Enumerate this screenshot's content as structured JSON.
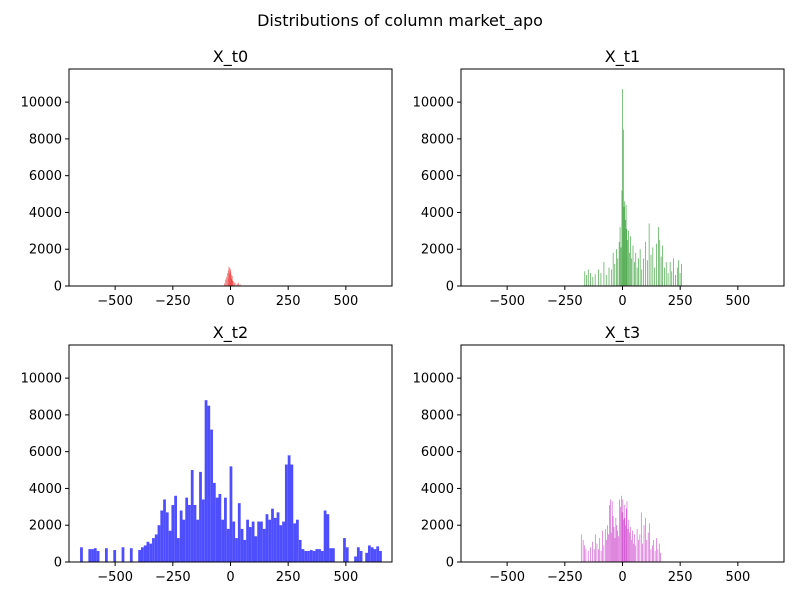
{
  "figure": {
    "title": "Distributions of column market_apo"
  },
  "chart_data": [
    {
      "type": "bar",
      "title": "X_t0",
      "xlabel": "",
      "ylabel": "",
      "xlim": [
        -700,
        700
      ],
      "ylim": [
        0,
        11800
      ],
      "xticks": [
        -500,
        -250,
        0,
        250,
        500
      ],
      "yticks": [
        0,
        2000,
        4000,
        6000,
        8000,
        10000
      ],
      "grid": false,
      "color": "#ee4444",
      "bin_width": 2,
      "bins": [
        [
          -28,
          150
        ],
        [
          -22,
          350
        ],
        [
          -18,
          500
        ],
        [
          -14,
          700
        ],
        [
          -12,
          400
        ],
        [
          -10,
          850
        ],
        [
          -8,
          1050
        ],
        [
          -6,
          650
        ],
        [
          -4,
          980
        ],
        [
          -2,
          750
        ],
        [
          0,
          900
        ],
        [
          2,
          600
        ],
        [
          4,
          400
        ],
        [
          6,
          550
        ],
        [
          8,
          300
        ],
        [
          12,
          250
        ],
        [
          16,
          180
        ],
        [
          22,
          150
        ],
        [
          28,
          120
        ],
        [
          34,
          180
        ],
        [
          40,
          100
        ]
      ]
    },
    {
      "type": "bar",
      "title": "X_t1",
      "xlabel": "",
      "ylabel": "",
      "xlim": [
        -700,
        700
      ],
      "ylim": [
        0,
        11800
      ],
      "xticks": [
        -500,
        -250,
        0,
        250,
        500
      ],
      "yticks": [
        0,
        2000,
        4000,
        6000,
        8000,
        10000
      ],
      "grid": false,
      "color": "#3fa23f",
      "bin_width": 3,
      "bins": [
        [
          -165,
          800
        ],
        [
          -158,
          600
        ],
        [
          -150,
          900
        ],
        [
          -140,
          700
        ],
        [
          -130,
          500
        ],
        [
          -120,
          650
        ],
        [
          -105,
          900
        ],
        [
          -95,
          700
        ],
        [
          -82,
          1300
        ],
        [
          -72,
          600
        ],
        [
          -60,
          1000
        ],
        [
          -50,
          900
        ],
        [
          -42,
          1800
        ],
        [
          -35,
          1200
        ],
        [
          -28,
          2000
        ],
        [
          -22,
          1500
        ],
        [
          -16,
          2400
        ],
        [
          -12,
          3200
        ],
        [
          -8,
          2100
        ],
        [
          -4,
          5200
        ],
        [
          -1,
          10700
        ],
        [
          2,
          8500
        ],
        [
          5,
          4300
        ],
        [
          8,
          4600
        ],
        [
          11,
          3600
        ],
        [
          14,
          4400
        ],
        [
          17,
          3100
        ],
        [
          20,
          2500
        ],
        [
          24,
          3000
        ],
        [
          28,
          1800
        ],
        [
          33,
          2700
        ],
        [
          38,
          1500
        ],
        [
          44,
          2200
        ],
        [
          50,
          1300
        ],
        [
          56,
          1800
        ],
        [
          62,
          1000
        ],
        [
          68,
          1500
        ],
        [
          75,
          2000
        ],
        [
          82,
          900
        ],
        [
          90,
          1500
        ],
        [
          98,
          2400
        ],
        [
          106,
          1400
        ],
        [
          114,
          3400
        ],
        [
          122,
          1700
        ],
        [
          130,
          2100
        ],
        [
          138,
          1000
        ],
        [
          146,
          2300
        ],
        [
          154,
          3200
        ],
        [
          160,
          2500
        ],
        [
          166,
          1600
        ],
        [
          172,
          2200
        ],
        [
          180,
          1000
        ],
        [
          188,
          1300
        ],
        [
          196,
          700
        ],
        [
          205,
          1300
        ],
        [
          212,
          800
        ],
        [
          220,
          1500
        ],
        [
          228,
          600
        ],
        [
          236,
          1000
        ],
        [
          242,
          1400
        ],
        [
          248,
          700
        ],
        [
          254,
          1200
        ]
      ]
    },
    {
      "type": "bar",
      "title": "X_t2",
      "xlabel": "",
      "ylabel": "",
      "xlim": [
        -700,
        700
      ],
      "ylim": [
        0,
        11800
      ],
      "xticks": [
        -500,
        -250,
        0,
        250,
        500
      ],
      "yticks": [
        0,
        2000,
        4000,
        6000,
        8000,
        10000
      ],
      "grid": false,
      "color": "#4444ff",
      "bin_width": 12,
      "bins": [
        [
          -652,
          800
        ],
        [
          -616,
          700
        ],
        [
          -604,
          700
        ],
        [
          -592,
          750
        ],
        [
          -580,
          600
        ],
        [
          -544,
          750
        ],
        [
          -508,
          650
        ],
        [
          -472,
          800
        ],
        [
          -436,
          750
        ],
        [
          -400,
          650
        ],
        [
          -388,
          800
        ],
        [
          -376,
          900
        ],
        [
          -364,
          1100
        ],
        [
          -352,
          1000
        ],
        [
          -340,
          1300
        ],
        [
          -328,
          1500
        ],
        [
          -316,
          2000
        ],
        [
          -304,
          2800
        ],
        [
          -292,
          3400
        ],
        [
          -280,
          2700
        ],
        [
          -268,
          1700
        ],
        [
          -256,
          3100
        ],
        [
          -244,
          3600
        ],
        [
          -232,
          1300
        ],
        [
          -220,
          2800
        ],
        [
          -208,
          2300
        ],
        [
          -196,
          3500
        ],
        [
          -184,
          3100
        ],
        [
          -172,
          5000
        ],
        [
          -160,
          3100
        ],
        [
          -148,
          2300
        ],
        [
          -136,
          4900
        ],
        [
          -124,
          3400
        ],
        [
          -112,
          8800
        ],
        [
          -100,
          8500
        ],
        [
          -88,
          7200
        ],
        [
          -76,
          4300
        ],
        [
          -64,
          3500
        ],
        [
          -52,
          3700
        ],
        [
          -40,
          2300
        ],
        [
          -28,
          3500
        ],
        [
          -16,
          1800
        ],
        [
          -4,
          5200
        ],
        [
          8,
          2200
        ],
        [
          20,
          1300
        ],
        [
          32,
          3200
        ],
        [
          44,
          1800
        ],
        [
          56,
          1200
        ],
        [
          68,
          2300
        ],
        [
          80,
          1900
        ],
        [
          92,
          2200
        ],
        [
          104,
          1400
        ],
        [
          116,
          2200
        ],
        [
          128,
          2200
        ],
        [
          140,
          1800
        ],
        [
          152,
          2600
        ],
        [
          164,
          2300
        ],
        [
          176,
          2900
        ],
        [
          188,
          2400
        ],
        [
          200,
          2700
        ],
        [
          212,
          2000
        ],
        [
          224,
          2200
        ],
        [
          236,
          5300
        ],
        [
          248,
          5800
        ],
        [
          260,
          5300
        ],
        [
          272,
          2100
        ],
        [
          284,
          2300
        ],
        [
          296,
          1200
        ],
        [
          308,
          700
        ],
        [
          320,
          600
        ],
        [
          332,
          600
        ],
        [
          344,
          650
        ],
        [
          356,
          600
        ],
        [
          368,
          700
        ],
        [
          380,
          700
        ],
        [
          392,
          600
        ],
        [
          404,
          2800
        ],
        [
          416,
          2600
        ],
        [
          428,
          750
        ],
        [
          440,
          750
        ],
        [
          488,
          1300
        ],
        [
          500,
          800
        ],
        [
          536,
          300
        ],
        [
          548,
          800
        ],
        [
          560,
          600
        ],
        [
          584,
          500
        ],
        [
          596,
          900
        ],
        [
          608,
          800
        ],
        [
          620,
          700
        ],
        [
          632,
          850
        ],
        [
          644,
          600
        ]
      ]
    },
    {
      "type": "bar",
      "title": "X_t3",
      "xlabel": "",
      "ylabel": "",
      "xlim": [
        -700,
        700
      ],
      "ylim": [
        0,
        11800
      ],
      "xticks": [
        -500,
        -250,
        0,
        250,
        500
      ],
      "yticks": [
        0,
        2000,
        4000,
        6000,
        8000,
        10000
      ],
      "grid": false,
      "color": "#cc44cc",
      "bin_width": 2.5,
      "bins": [
        [
          -180,
          1500
        ],
        [
          -172,
          1200
        ],
        [
          -166,
          900
        ],
        [
          -160,
          700
        ],
        [
          -150,
          600
        ],
        [
          -140,
          800
        ],
        [
          -132,
          1100
        ],
        [
          -124,
          700
        ],
        [
          -118,
          1500
        ],
        [
          -112,
          1000
        ],
        [
          -106,
          700
        ],
        [
          -100,
          1300
        ],
        [
          -94,
          600
        ],
        [
          -88,
          1700
        ],
        [
          -82,
          900
        ],
        [
          -76,
          1800
        ],
        [
          -70,
          1200
        ],
        [
          -66,
          2000
        ],
        [
          -62,
          1500
        ],
        [
          -58,
          3100
        ],
        [
          -54,
          3400
        ],
        [
          -50,
          1600
        ],
        [
          -46,
          3300
        ],
        [
          -42,
          2500
        ],
        [
          -38,
          1900
        ],
        [
          -34,
          1300
        ],
        [
          -30,
          2400
        ],
        [
          -26,
          2000
        ],
        [
          -22,
          1700
        ],
        [
          -18,
          1400
        ],
        [
          -14,
          3400
        ],
        [
          -10,
          3000
        ],
        [
          -6,
          3600
        ],
        [
          -3,
          2700
        ],
        [
          0,
          3400
        ],
        [
          3,
          2300
        ],
        [
          6,
          3100
        ],
        [
          9,
          2400
        ],
        [
          12,
          2000
        ],
        [
          15,
          2900
        ],
        [
          18,
          3300
        ],
        [
          22,
          1800
        ],
        [
          26,
          2300
        ],
        [
          30,
          1600
        ],
        [
          34,
          1900
        ],
        [
          38,
          1200
        ],
        [
          42,
          1700
        ],
        [
          46,
          1000
        ],
        [
          50,
          1500
        ],
        [
          56,
          900
        ],
        [
          62,
          1800
        ],
        [
          68,
          1200
        ],
        [
          74,
          1500
        ],
        [
          80,
          2700
        ],
        [
          86,
          1000
        ],
        [
          92,
          2000
        ],
        [
          98,
          2400
        ],
        [
          104,
          1200
        ],
        [
          110,
          1600
        ],
        [
          116,
          2100
        ],
        [
          122,
          700
        ],
        [
          128,
          900
        ],
        [
          134,
          1200
        ],
        [
          140,
          600
        ],
        [
          146,
          1300
        ],
        [
          152,
          700
        ],
        [
          158,
          1000
        ],
        [
          164,
          500
        ]
      ]
    }
  ]
}
